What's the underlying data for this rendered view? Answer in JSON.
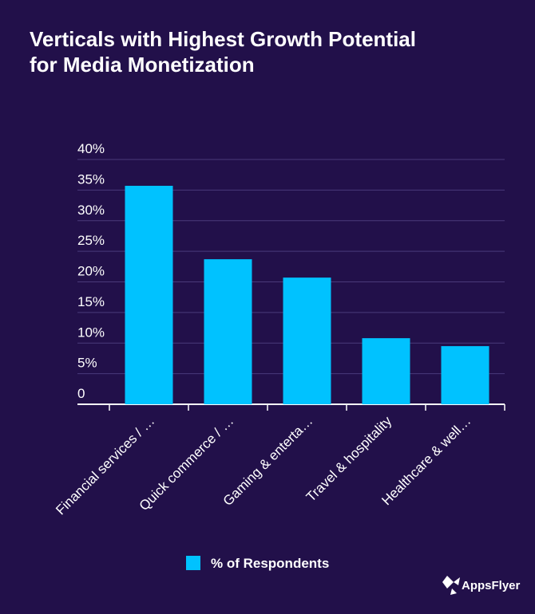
{
  "chart_data": {
    "type": "bar",
    "title": [
      "Verticals with Highest Growth Potential",
      "for Media Monetization"
    ],
    "categories": [
      "Financial services / …",
      "Quick commerce / …",
      "Gaming & enterta…",
      "Travel & hospitality",
      "Healthcare & well…"
    ],
    "series": [
      {
        "name": "% of Respondents",
        "color": "#00c2ff",
        "values": [
          35.7,
          23.7,
          20.7,
          10.8,
          9.5
        ]
      }
    ],
    "ylim": [
      0,
      40
    ],
    "yticks": [
      0,
      {
        "value": 5,
        "label": "5%"
      },
      {
        "value": 10,
        "label": "10%"
      },
      {
        "value": 15,
        "label": "15%"
      },
      {
        "value": 20,
        "label": "20%"
      },
      {
        "value": 25,
        "label": "25%"
      },
      {
        "value": 30,
        "label": "30%"
      },
      {
        "value": 35,
        "label": "35%"
      },
      {
        "value": 40,
        "label": "40%"
      }
    ],
    "grid": true
  },
  "brand": "AppsFlyer"
}
